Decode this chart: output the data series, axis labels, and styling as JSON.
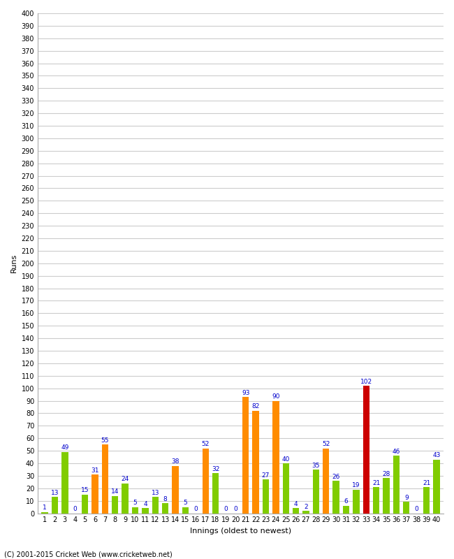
{
  "innings": [
    1,
    2,
    3,
    4,
    5,
    6,
    7,
    8,
    9,
    10,
    11,
    12,
    13,
    14,
    15,
    16,
    17,
    18,
    19,
    20,
    21,
    22,
    23,
    24,
    25,
    26,
    27,
    28,
    29,
    30,
    31,
    32,
    33,
    34,
    35,
    36,
    37,
    38,
    39,
    40
  ],
  "values": [
    1,
    13,
    49,
    0,
    15,
    31,
    55,
    14,
    24,
    5,
    4,
    13,
    8,
    38,
    5,
    0,
    52,
    32,
    0,
    0,
    93,
    82,
    27,
    90,
    40,
    4,
    2,
    35,
    52,
    26,
    6,
    19,
    102,
    21,
    28,
    46,
    9,
    0,
    21,
    43
  ],
  "colors": [
    "#80cc00",
    "#80cc00",
    "#80cc00",
    "#80cc00",
    "#80cc00",
    "#ff8c00",
    "#ff8c00",
    "#80cc00",
    "#80cc00",
    "#80cc00",
    "#80cc00",
    "#80cc00",
    "#80cc00",
    "#ff8c00",
    "#80cc00",
    "#80cc00",
    "#ff8c00",
    "#80cc00",
    "#80cc00",
    "#80cc00",
    "#ff8c00",
    "#ff8c00",
    "#80cc00",
    "#ff8c00",
    "#80cc00",
    "#80cc00",
    "#80cc00",
    "#80cc00",
    "#ff8c00",
    "#80cc00",
    "#80cc00",
    "#80cc00",
    "#cc0000",
    "#80cc00",
    "#80cc00",
    "#80cc00",
    "#80cc00",
    "#80cc00",
    "#80cc00",
    "#80cc00"
  ],
  "xlabel": "Innings (oldest to newest)",
  "ylabel": "Runs",
  "ylim": [
    0,
    400
  ],
  "yticks": [
    0,
    10,
    20,
    30,
    40,
    50,
    60,
    70,
    80,
    90,
    100,
    110,
    120,
    130,
    140,
    150,
    160,
    170,
    180,
    190,
    200,
    210,
    220,
    230,
    240,
    250,
    260,
    270,
    280,
    290,
    300,
    310,
    320,
    330,
    340,
    350,
    360,
    370,
    380,
    390,
    400
  ],
  "bg_color": "#ffffff",
  "grid_color": "#cccccc",
  "label_color": "#0000cc",
  "label_fontsize": 6.5,
  "tick_fontsize": 7,
  "axis_label_fontsize": 8,
  "copyright": "(C) 2001-2015 Cricket Web (www.cricketweb.net)"
}
